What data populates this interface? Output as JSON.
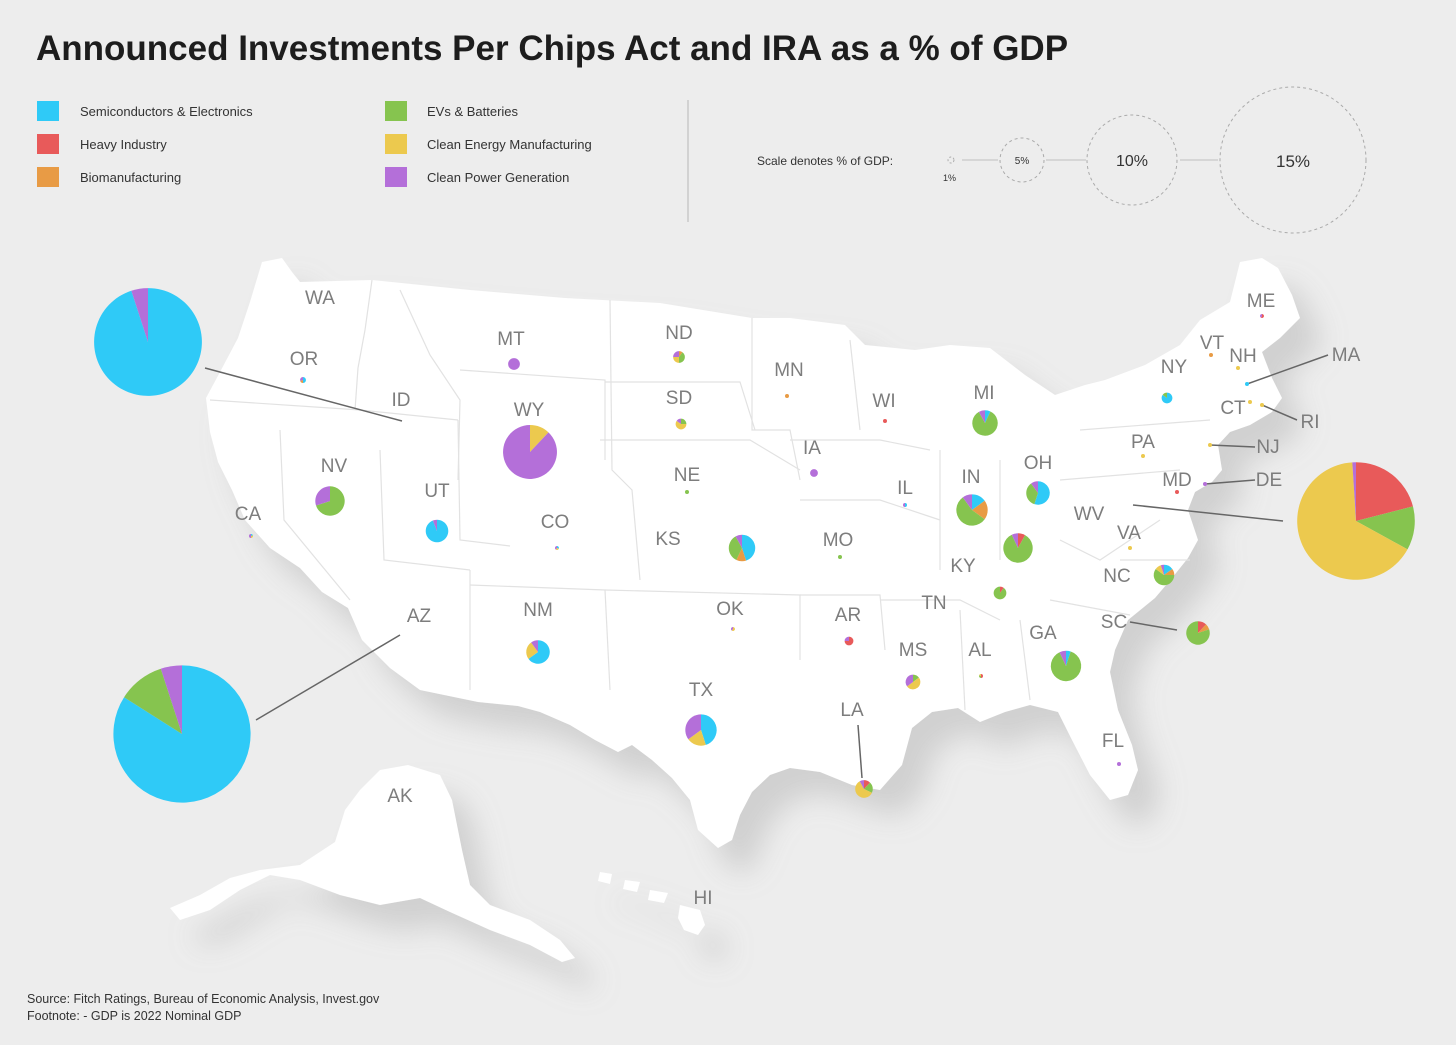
{
  "title": "Announced Investments Per Chips Act and IRA as a % of GDP",
  "legend": [
    {
      "key": "semi",
      "label": "Semiconductors & Electronics",
      "color": "#2fcaf7"
    },
    {
      "key": "heavy",
      "label": "Heavy Industry",
      "color": "#e85a5a"
    },
    {
      "key": "bio",
      "label": "Biomanufacturing",
      "color": "#e89b45"
    },
    {
      "key": "ev",
      "label": "EVs & Batteries",
      "color": "#86c44f"
    },
    {
      "key": "clean",
      "label": "Clean Energy Manufacturing",
      "color": "#ecc94e"
    },
    {
      "key": "power",
      "label": "Clean Power Generation",
      "color": "#b46fd9"
    }
  ],
  "scale": {
    "label": "Scale denotes % of GDP:",
    "steps": [
      {
        "label": "1%",
        "value": 1
      },
      {
        "label": "5%",
        "value": 5
      },
      {
        "label": "10%",
        "value": 10
      },
      {
        "label": "15%",
        "value": 15
      }
    ]
  },
  "states": [
    {
      "abbr": "WA",
      "gdp_pct": 0.1,
      "mix": {}
    },
    {
      "abbr": "OR",
      "gdp_pct": 0.6,
      "mix": {
        "semi": 50,
        "power": 30,
        "bio": 20
      }
    },
    {
      "abbr": "ID",
      "gdp_pct": 11,
      "mix": {
        "semi": 95,
        "power": 5
      }
    },
    {
      "abbr": "MT",
      "gdp_pct": 1.2,
      "mix": {
        "power": 100
      }
    },
    {
      "abbr": "ND",
      "gdp_pct": 1.2,
      "mix": {
        "ev": 40,
        "clean": 25,
        "power": 25,
        "bio": 10
      }
    },
    {
      "abbr": "SD",
      "gdp_pct": 1.1,
      "mix": {
        "clean": 60,
        "ev": 25,
        "power": 15
      }
    },
    {
      "abbr": "WY",
      "gdp_pct": 5.5,
      "mix": {
        "power": 88,
        "clean": 12
      }
    },
    {
      "abbr": "MN",
      "gdp_pct": 0.05,
      "mix": {
        "bio": 100
      }
    },
    {
      "abbr": "WI",
      "gdp_pct": 0.05,
      "mix": {
        "heavy": 100
      }
    },
    {
      "abbr": "MI",
      "gdp_pct": 2.6,
      "mix": {
        "ev": 85,
        "power": 8,
        "semi": 7
      }
    },
    {
      "abbr": "NY",
      "gdp_pct": 1.1,
      "mix": {
        "semi": 85,
        "ev": 15
      }
    },
    {
      "abbr": "ME",
      "gdp_pct": 0.3,
      "mix": {
        "heavy": 60,
        "power": 40
      }
    },
    {
      "abbr": "VT",
      "gdp_pct": 0.1,
      "mix": {
        "bio": 100
      }
    },
    {
      "abbr": "NH",
      "gdp_pct": 0.05,
      "mix": {
        "clean": 100
      }
    },
    {
      "abbr": "MA",
      "gdp_pct": 0.05,
      "mix": {
        "semi": 100
      }
    },
    {
      "abbr": "CT",
      "gdp_pct": 0.1,
      "mix": {
        "clean": 100
      }
    },
    {
      "abbr": "RI",
      "gdp_pct": 0.05,
      "mix": {
        "clean": 100
      }
    },
    {
      "abbr": "NJ",
      "gdp_pct": 0.05,
      "mix": {
        "clean": 100
      }
    },
    {
      "abbr": "PA",
      "gdp_pct": 0.1,
      "mix": {
        "clean": 100
      }
    },
    {
      "abbr": "DE",
      "gdp_pct": 0.1,
      "mix": {
        "power": 100
      }
    },
    {
      "abbr": "MD",
      "gdp_pct": 0.1,
      "mix": {
        "heavy": 100
      }
    },
    {
      "abbr": "WV",
      "gdp_pct": 12,
      "mix": {
        "clean": 66,
        "heavy": 21,
        "ev": 12,
        "power": 1
      }
    },
    {
      "abbr": "NV",
      "gdp_pct": 3,
      "mix": {
        "ev": 70,
        "power": 30
      }
    },
    {
      "abbr": "UT",
      "gdp_pct": 2.3,
      "mix": {
        "semi": 94,
        "power": 6
      }
    },
    {
      "abbr": "CO",
      "gdp_pct": 0.3,
      "mix": {
        "power": 40,
        "clean": 30,
        "semi": 30
      }
    },
    {
      "abbr": "CA",
      "gdp_pct": 0.2,
      "mix": {
        "power": 50,
        "clean": 30,
        "semi": 20
      }
    },
    {
      "abbr": "NE",
      "gdp_pct": 0.05,
      "mix": {
        "ev": 100
      }
    },
    {
      "abbr": "IA",
      "gdp_pct": 0.8,
      "mix": {
        "power": 100
      }
    },
    {
      "abbr": "KS",
      "gdp_pct": 2.7,
      "mix": {
        "semi": 45,
        "ev": 35,
        "bio": 12,
        "power": 8
      }
    },
    {
      "abbr": "MO",
      "gdp_pct": 0.05,
      "mix": {
        "ev": 100
      }
    },
    {
      "abbr": "IL",
      "gdp_pct": 0.1,
      "mix": {
        "power": 50,
        "semi": 50
      }
    },
    {
      "abbr": "IN",
      "gdp_pct": 3.2,
      "mix": {
        "ev": 55,
        "bio": 20,
        "semi": 15,
        "power": 10
      }
    },
    {
      "abbr": "OH",
      "gdp_pct": 2.4,
      "mix": {
        "semi": 55,
        "ev": 35,
        "power": 10
      }
    },
    {
      "abbr": "KY",
      "gdp_pct": 3,
      "mix": {
        "ev": 85,
        "heavy": 8,
        "power": 7
      }
    },
    {
      "abbr": "TN",
      "gdp_pct": 1.3,
      "mix": {
        "ev": 90,
        "heavy": 10
      }
    },
    {
      "abbr": "VA",
      "gdp_pct": 0.05,
      "mix": {
        "clean": 100
      }
    },
    {
      "abbr": "NC",
      "gdp_pct": 2.1,
      "mix": {
        "ev": 60,
        "semi": 15,
        "clean": 10,
        "bio": 10,
        "power": 5
      }
    },
    {
      "abbr": "SC",
      "gdp_pct": 2.4,
      "mix": {
        "ev": 80,
        "heavy": 12,
        "bio": 8
      }
    },
    {
      "abbr": "GA",
      "gdp_pct": 3.1,
      "mix": {
        "ev": 88,
        "power": 7,
        "semi": 5
      }
    },
    {
      "abbr": "AL",
      "gdp_pct": 0.4,
      "mix": {
        "heavy": 50,
        "ev": 30,
        "clean": 20
      }
    },
    {
      "abbr": "MS",
      "gdp_pct": 1.5,
      "mix": {
        "clean": 50,
        "power": 35,
        "ev": 15
      }
    },
    {
      "abbr": "AR",
      "gdp_pct": 0.9,
      "mix": {
        "heavy": 75,
        "power": 25
      }
    },
    {
      "abbr": "OK",
      "gdp_pct": 0.1,
      "mix": {
        "clean": 60,
        "power": 40
      }
    },
    {
      "abbr": "NM",
      "gdp_pct": 2.4,
      "mix": {
        "semi": 65,
        "clean": 25,
        "power": 10
      }
    },
    {
      "abbr": "AZ",
      "gdp_pct": 14,
      "mix": {
        "semi": 84,
        "ev": 11,
        "power": 5
      }
    },
    {
      "abbr": "TX",
      "gdp_pct": 3.2,
      "mix": {
        "semi": 45,
        "clean": 20,
        "power": 35
      }
    },
    {
      "abbr": "LA",
      "gdp_pct": 1.8,
      "mix": {
        "clean": 60,
        "ev": 20,
        "heavy": 12,
        "power": 8
      }
    },
    {
      "abbr": "FL",
      "gdp_pct": 0.1,
      "mix": {
        "power": 100
      }
    },
    {
      "abbr": "AK",
      "gdp_pct": 0,
      "mix": {}
    },
    {
      "abbr": "HI",
      "gdp_pct": 0,
      "mix": {}
    }
  ],
  "footer": {
    "source": "Source: Fitch Ratings, Bureau of Economic Analysis,  Invest.gov",
    "footnote": "Footnote: - GDP is 2022 Nominal GDP"
  }
}
